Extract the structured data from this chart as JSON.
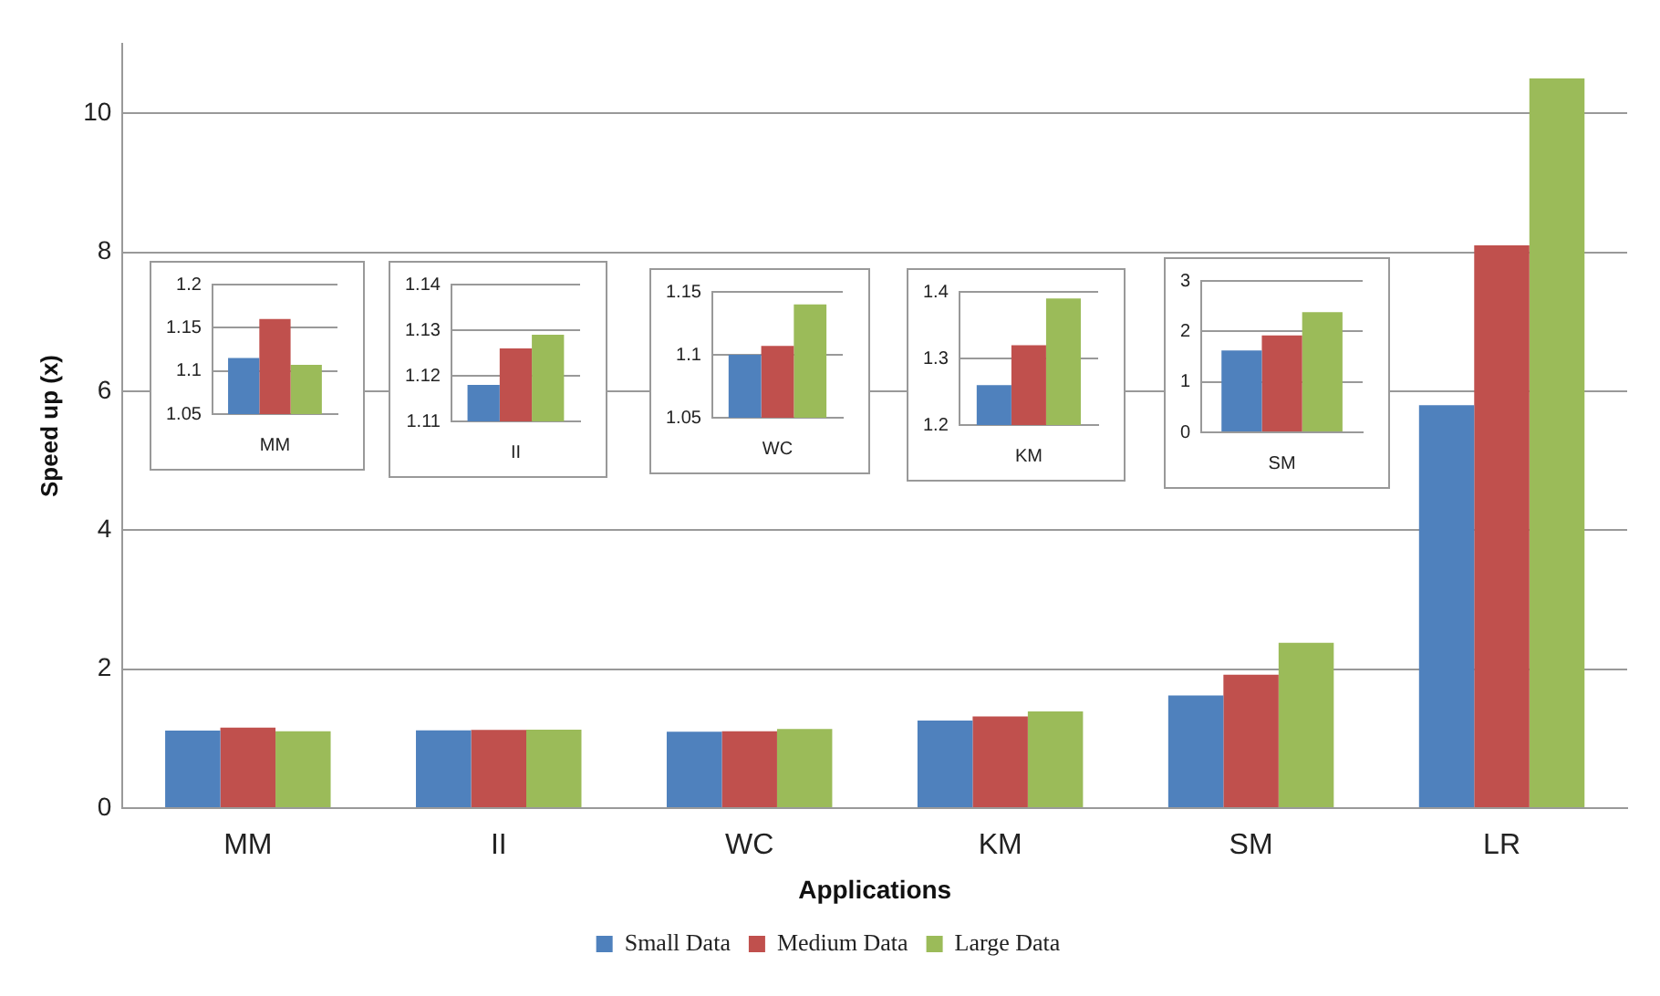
{
  "chart_data": [
    {
      "type": "bar",
      "xlabel": "Applications",
      "ylabel": "Speed up (x)",
      "categories": [
        "MM",
        "II",
        "WC",
        "KM",
        "SM",
        "LR"
      ],
      "series": [
        {
          "name": "Small Data",
          "color": "#4f81bd",
          "values": [
            1.115,
            1.118,
            1.1,
            1.26,
            1.62,
            5.8
          ]
        },
        {
          "name": "Medium Data",
          "color": "#c0504d",
          "values": [
            1.16,
            1.126,
            1.107,
            1.32,
            1.92,
            8.1
          ]
        },
        {
          "name": "Large Data",
          "color": "#9bbb59",
          "values": [
            1.107,
            1.129,
            1.14,
            1.39,
            2.38,
            10.5
          ]
        }
      ],
      "ylim": [
        0,
        11
      ],
      "yticks": [
        0,
        2,
        4,
        6,
        8,
        10
      ],
      "grid": "y",
      "legend": "bottom"
    },
    {
      "type": "bar",
      "categories": [
        "MM"
      ],
      "series": [
        {
          "color": "#4f81bd",
          "values": [
            1.115
          ]
        },
        {
          "color": "#c0504d",
          "values": [
            1.16
          ]
        },
        {
          "color": "#9bbb59",
          "values": [
            1.107
          ]
        }
      ],
      "ylim": [
        1.05,
        1.2
      ],
      "yticks": [
        1.05,
        1.1,
        1.15,
        1.2
      ],
      "grid": "y"
    },
    {
      "type": "bar",
      "categories": [
        "II"
      ],
      "series": [
        {
          "color": "#4f81bd",
          "values": [
            1.118
          ]
        },
        {
          "color": "#c0504d",
          "values": [
            1.126
          ]
        },
        {
          "color": "#9bbb59",
          "values": [
            1.129
          ]
        }
      ],
      "ylim": [
        1.11,
        1.14
      ],
      "yticks": [
        1.11,
        1.12,
        1.13,
        1.14
      ],
      "grid": "y"
    },
    {
      "type": "bar",
      "categories": [
        "WC"
      ],
      "series": [
        {
          "color": "#4f81bd",
          "values": [
            1.1
          ]
        },
        {
          "color": "#c0504d",
          "values": [
            1.107
          ]
        },
        {
          "color": "#9bbb59",
          "values": [
            1.14
          ]
        }
      ],
      "ylim": [
        1.05,
        1.15
      ],
      "yticks": [
        1.05,
        1.1,
        1.15
      ],
      "grid": "y"
    },
    {
      "type": "bar",
      "categories": [
        "KM"
      ],
      "series": [
        {
          "color": "#4f81bd",
          "values": [
            1.26
          ]
        },
        {
          "color": "#c0504d",
          "values": [
            1.32
          ]
        },
        {
          "color": "#9bbb59",
          "values": [
            1.39
          ]
        }
      ],
      "ylim": [
        1.2,
        1.4
      ],
      "yticks": [
        1.2,
        1.3,
        1.4
      ],
      "grid": "y"
    },
    {
      "type": "bar",
      "categories": [
        "SM"
      ],
      "series": [
        {
          "color": "#4f81bd",
          "values": [
            1.62
          ]
        },
        {
          "color": "#c0504d",
          "values": [
            1.92
          ]
        },
        {
          "color": "#9bbb59",
          "values": [
            2.38
          ]
        }
      ],
      "ylim": [
        0,
        3
      ],
      "yticks": [
        0,
        1,
        2,
        3
      ],
      "grid": "y"
    }
  ]
}
